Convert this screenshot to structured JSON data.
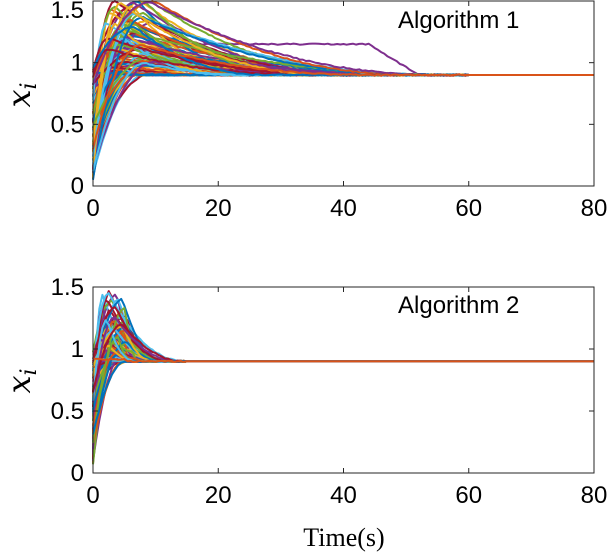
{
  "chart_data": [
    {
      "type": "line",
      "panel": "top",
      "annotation": "Algorithm 1",
      "ylabel_main": "x",
      "ylabel_sub": "i",
      "xlabel": "",
      "xlim": [
        0,
        80
      ],
      "ylim": [
        0,
        1.5
      ],
      "xticks": [
        0,
        20,
        40,
        60,
        80
      ],
      "yticks": [
        0,
        0.5,
        1,
        1.5
      ],
      "xtick_labels": [
        "0",
        "20",
        "40",
        "60",
        "80"
      ],
      "ytick_labels": [
        "0",
        "0.5",
        "1",
        "1.5"
      ],
      "grid": false,
      "num_agents": 100,
      "consensus_value": 0.9,
      "consensus_time": 60,
      "peak_value": 1.5,
      "min_value": 0.12
    },
    {
      "type": "line",
      "panel": "bottom",
      "annotation": "Algorithm 2",
      "ylabel_main": "x",
      "ylabel_sub": "i",
      "xlabel": "Time(s)",
      "xlim": [
        0,
        80
      ],
      "ylim": [
        0,
        1.5
      ],
      "xticks": [
        0,
        20,
        40,
        60,
        80
      ],
      "yticks": [
        0,
        0.5,
        1,
        1.5
      ],
      "xtick_labels": [
        "0",
        "20",
        "40",
        "60",
        "80"
      ],
      "ytick_labels": [
        "0",
        "0.5",
        "1",
        "1.5"
      ],
      "grid": false,
      "num_agents": 100,
      "consensus_value": 0.9,
      "consensus_time": 15,
      "peak_value": 1.47,
      "min_value": 0.05
    }
  ],
  "colors": [
    "#0072BD",
    "#D95319",
    "#EDB120",
    "#7E2F8E",
    "#77AC30",
    "#4DBEEE",
    "#A2142F"
  ]
}
